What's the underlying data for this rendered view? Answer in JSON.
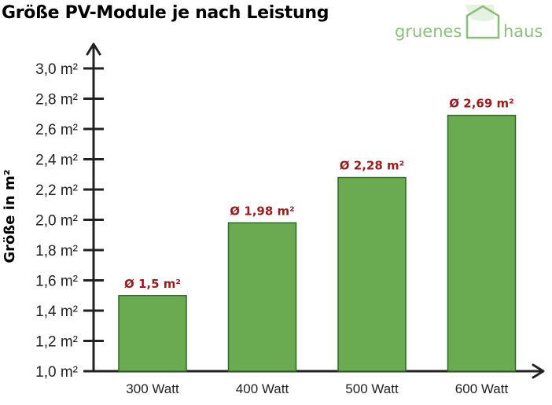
{
  "title": "Größe PV-Module je nach Leistung",
  "logo": {
    "left": "gruenes",
    "right": "haus",
    "accent": "#8bc07c"
  },
  "colors": {
    "bar": "#6aaa50",
    "bar_stroke": "#2f6a22",
    "data_label": "#9b1c1c",
    "axis": "#222222"
  },
  "chart_data": {
    "type": "bar",
    "title": "Größe PV-Module je nach Leistung",
    "xlabel": "",
    "ylabel": "Größe in m²",
    "categories": [
      "300 Watt",
      "400 Watt",
      "500 Watt",
      "600 Watt"
    ],
    "values": [
      1.5,
      1.98,
      2.28,
      2.69
    ],
    "data_labels": [
      "Ø 1,5 m²",
      "Ø 1,98 m²",
      "Ø 2,28 m²",
      "Ø 2,69 m²"
    ],
    "ylim": [
      1.0,
      3.0
    ],
    "yticks": [
      1.0,
      1.2,
      1.4,
      1.6,
      1.8,
      2.0,
      2.2,
      2.4,
      2.6,
      2.8,
      3.0
    ],
    "ytick_labels": [
      "1,0 m²",
      "1,2 m²",
      "1,4 m²",
      "1,6 m²",
      "1,8 m²",
      "2,0 m²",
      "2,2 m²",
      "2,4 m²",
      "2,6 m²",
      "2,8 m²",
      "3,0 m²"
    ],
    "grid": false,
    "legend": "none"
  }
}
